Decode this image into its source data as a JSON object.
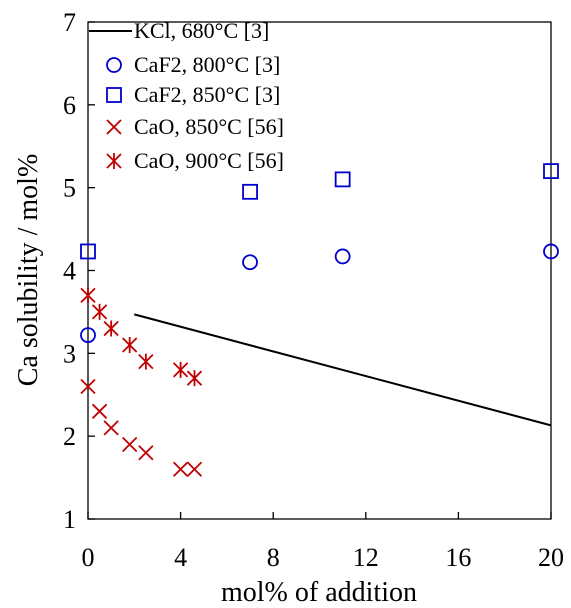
{
  "chart_data": {
    "type": "scatter",
    "title": "",
    "xlabel": "mol% of addition",
    "ylabel": "Ca solubility / mol%",
    "xlim": [
      0,
      20
    ],
    "ylim": [
      1,
      7
    ],
    "x_ticks": [
      "0",
      "4",
      "8",
      "12",
      "16",
      "20"
    ],
    "y_ticks": [
      "1",
      "2",
      "3",
      "4",
      "5",
      "6",
      "7"
    ],
    "grid": false,
    "legend_position": "top-left",
    "series": [
      {
        "name": "KCl, 680°C [3]",
        "marker": "line",
        "color": "#000000",
        "points": [
          [
            2,
            3.47
          ],
          [
            20,
            2.13
          ]
        ]
      },
      {
        "name": "CaF2, 800°C [3]",
        "marker": "circle",
        "color": "#0000cc",
        "points": [
          [
            0,
            3.22
          ],
          [
            7,
            4.1
          ],
          [
            11,
            4.17
          ],
          [
            20,
            4.23
          ]
        ]
      },
      {
        "name": "CaF2, 850°C [3]",
        "marker": "square",
        "color": "#0000cc",
        "points": [
          [
            0,
            4.23
          ],
          [
            7,
            4.95
          ],
          [
            11,
            5.1
          ],
          [
            20,
            5.2
          ]
        ]
      },
      {
        "name": "CaO, 850°C [56]",
        "marker": "x",
        "color": "#c00000",
        "points": [
          [
            0,
            2.6
          ],
          [
            0.5,
            2.3
          ],
          [
            1,
            2.1
          ],
          [
            1.8,
            1.9
          ],
          [
            2.5,
            1.8
          ],
          [
            4,
            1.6
          ],
          [
            4.6,
            1.6
          ]
        ]
      },
      {
        "name": "CaO, 900°C [56]",
        "marker": "asterisk",
        "color": "#c00000",
        "points": [
          [
            0,
            3.7
          ],
          [
            0.5,
            3.5
          ],
          [
            1,
            3.3
          ],
          [
            1.8,
            3.1
          ],
          [
            2.5,
            2.9
          ],
          [
            4,
            2.8
          ],
          [
            4.6,
            2.7
          ]
        ]
      }
    ]
  }
}
